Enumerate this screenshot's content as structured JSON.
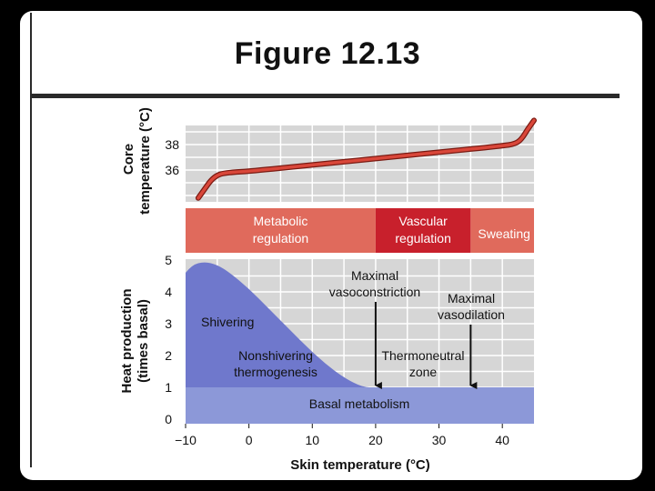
{
  "slide": {
    "title": "Figure 12.13"
  },
  "chart_data": {
    "type": "line",
    "x": {
      "label": "Skin temperature (°C)",
      "range": [
        -10,
        45
      ],
      "ticks": [
        -10,
        0,
        10,
        20,
        30,
        40
      ],
      "tick_labels": [
        "−10",
        "0",
        "10",
        "20",
        "30",
        "40"
      ]
    },
    "core_panel": {
      "ylabel_line1": "Core",
      "ylabel_line2": "temperature (°C)",
      "ticks": [
        36,
        38
      ],
      "tick_labels": [
        "36",
        "38"
      ],
      "series": [
        {
          "x": [
            -8,
            -7,
            -6,
            -5,
            -4,
            -2,
            0,
            10,
            20,
            30,
            40,
            42,
            43,
            44,
            45
          ],
          "y": [
            33.8,
            34.5,
            35.2,
            35.6,
            35.75,
            35.85,
            35.9,
            36.4,
            36.9,
            37.4,
            37.9,
            38.05,
            38.4,
            39.2,
            39.9
          ]
        }
      ]
    },
    "regulation_band": [
      {
        "line1": "Metabolic",
        "line2": "regulation",
        "from": -10,
        "to": 20,
        "color": "#e06a5c"
      },
      {
        "line1": "Vascular",
        "line2": "regulation",
        "from": 20,
        "to": 35,
        "color": "#c8202c"
      },
      {
        "line1": "Sweating",
        "line2": "",
        "from": 35,
        "to": 45,
        "color": "#e06a5c"
      }
    ],
    "heat_panel": {
      "ylabel_line1": "Heat production",
      "ylabel_line2": "(times basal)",
      "ylim": [
        0,
        5
      ],
      "ticks": [
        0,
        1,
        2,
        3,
        4,
        5
      ],
      "tick_labels": [
        "0",
        "1",
        "2",
        "3",
        "4",
        "5"
      ],
      "series": [
        {
          "type": "area",
          "x": [
            -10,
            -9,
            -7,
            -5,
            -3,
            0,
            3,
            6,
            9,
            12,
            15,
            18,
            20,
            45
          ],
          "y": [
            4.6,
            4.85,
            4.95,
            4.85,
            4.6,
            4.1,
            3.5,
            2.9,
            2.3,
            1.75,
            1.3,
            1.0,
            1.0,
            1.0
          ]
        }
      ],
      "annotations": [
        {
          "text": "Shivering"
        },
        {
          "line1": "Nonshivering",
          "line2": "thermogenesis"
        },
        {
          "text": "Basal metabolism"
        },
        {
          "line1": "Maximal",
          "line2": "vasoconstriction",
          "arrow_x": 20
        },
        {
          "line1": "Maximal",
          "line2": "vasodilation",
          "arrow_x": 35
        },
        {
          "line1": "Thermoneutral",
          "line2": "zone"
        }
      ]
    },
    "colors": {
      "plot_bg": "#d6d6d6",
      "grid": "#ffffff",
      "curve": "#c83a2e",
      "area_fill": "#6f78cc",
      "basal_band": "#8c98d8"
    }
  }
}
